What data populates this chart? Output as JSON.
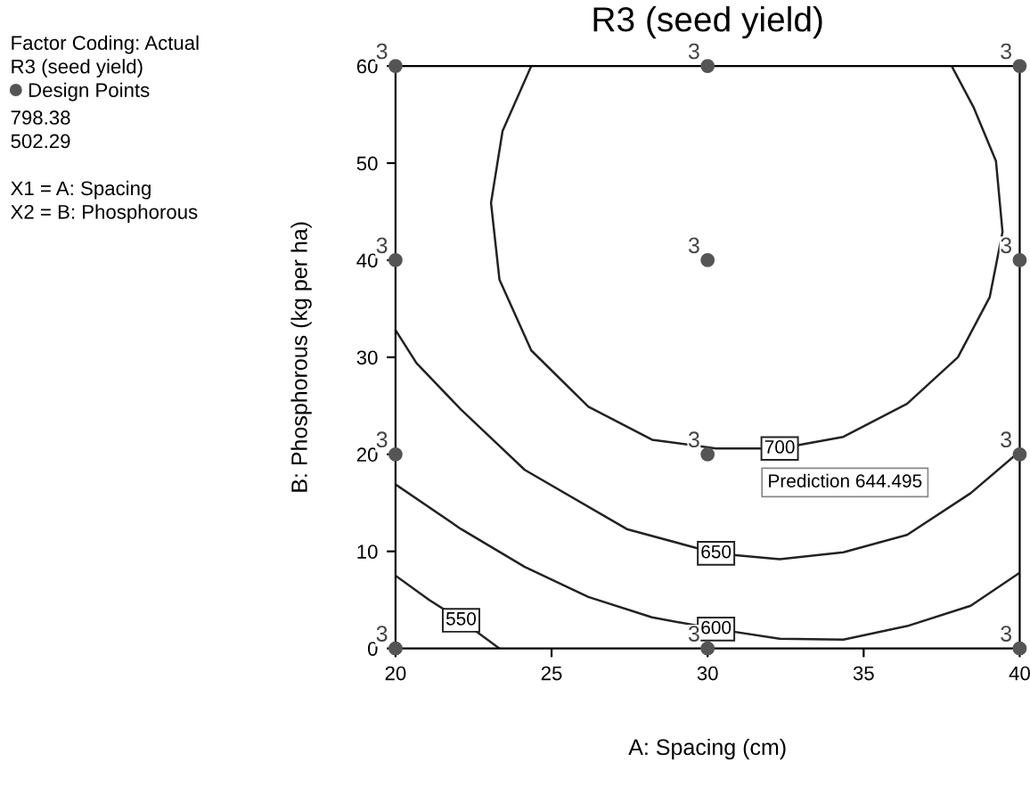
{
  "chart_data": {
    "type": "scatter",
    "title": "R3 (seed yield)",
    "xlabel": "A: Spacing (cm)",
    "ylabel": "B: Phosphorous (kg per ha)",
    "xlim": [
      20,
      40
    ],
    "ylim": [
      0,
      60
    ],
    "xticks": [
      20,
      25,
      30,
      35,
      40
    ],
    "yticks": [
      0,
      10,
      20,
      30,
      40,
      50,
      60
    ],
    "grid": false,
    "legend": "left",
    "series": [
      {
        "name": "Design Points",
        "marker": "circle",
        "color": "#555555",
        "x": [
          20,
          30,
          40,
          20,
          30,
          40,
          20,
          30,
          40,
          20,
          30,
          40
        ],
        "values": [
          0,
          0,
          0,
          20,
          20,
          20,
          40,
          40,
          40,
          60,
          60,
          60
        ]
      },
      {
        "name": "700",
        "type": "line",
        "color": "#222222",
        "x": [
          24.35,
          23.43,
          23.06,
          23.33,
          24.35,
          26.18,
          28.22,
          30.27,
          32.31,
          34.35,
          36.39,
          38.02,
          39.04,
          39.45,
          39.24,
          38.53,
          37.82
        ],
        "values": [
          60,
          53.3,
          45.9,
          38.0,
          30.7,
          24.9,
          21.5,
          20.6,
          20.6,
          21.8,
          25.2,
          30.0,
          36.2,
          42.9,
          50.2,
          55.7,
          60
        ]
      },
      {
        "name": "650",
        "type": "line",
        "color": "#222222",
        "x": [
          20,
          20.67,
          22.1,
          24.14,
          27.41,
          30.27,
          32.31,
          34.35,
          36.39,
          38.43,
          40
        ],
        "values": [
          32.8,
          29.4,
          24.6,
          18.4,
          12.3,
          9.8,
          9.2,
          9.9,
          11.7,
          16.0,
          20.3
        ]
      },
      {
        "name": "600",
        "type": "line",
        "color": "#222222",
        "x": [
          20,
          22.1,
          24.14,
          26.18,
          28.22,
          30.27,
          32.31,
          34.35,
          36.39,
          38.43,
          40
        ],
        "values": [
          16.9,
          12.3,
          8.4,
          5.3,
          3.2,
          2.0,
          1.0,
          0.9,
          2.3,
          4.4,
          7.8
        ]
      },
      {
        "name": "550",
        "type": "line",
        "color": "#222222",
        "x": [
          20,
          21.08,
          22.1,
          23.33
        ],
        "values": [
          7.5,
          5.0,
          2.9,
          0
        ]
      }
    ],
    "annotations": [
      "Factor Coding: Actual",
      "R3 (seed yield)",
      "798.38",
      "502.29",
      "X1 = A: Spacing",
      "X2 = B: Phosphorous",
      "Prediction 644.495",
      {
        "text": "3",
        "x": 20,
        "y": 0
      },
      {
        "text": "3",
        "x": 30,
        "y": 0
      },
      {
        "text": "3",
        "x": 40,
        "y": 0
      },
      {
        "text": "3",
        "x": 20,
        "y": 20
      },
      {
        "text": "3",
        "x": 30,
        "y": 20
      },
      {
        "text": "3",
        "x": 40,
        "y": 20
      },
      {
        "text": "3",
        "x": 20,
        "y": 40
      },
      {
        "text": "3",
        "x": 30,
        "y": 40
      },
      {
        "text": "3",
        "x": 40,
        "y": 40
      },
      {
        "text": "3",
        "x": 20,
        "y": 60
      },
      {
        "text": "3",
        "x": 30,
        "y": 60
      },
      {
        "text": "3",
        "x": 40,
        "y": 60
      }
    ]
  }
}
